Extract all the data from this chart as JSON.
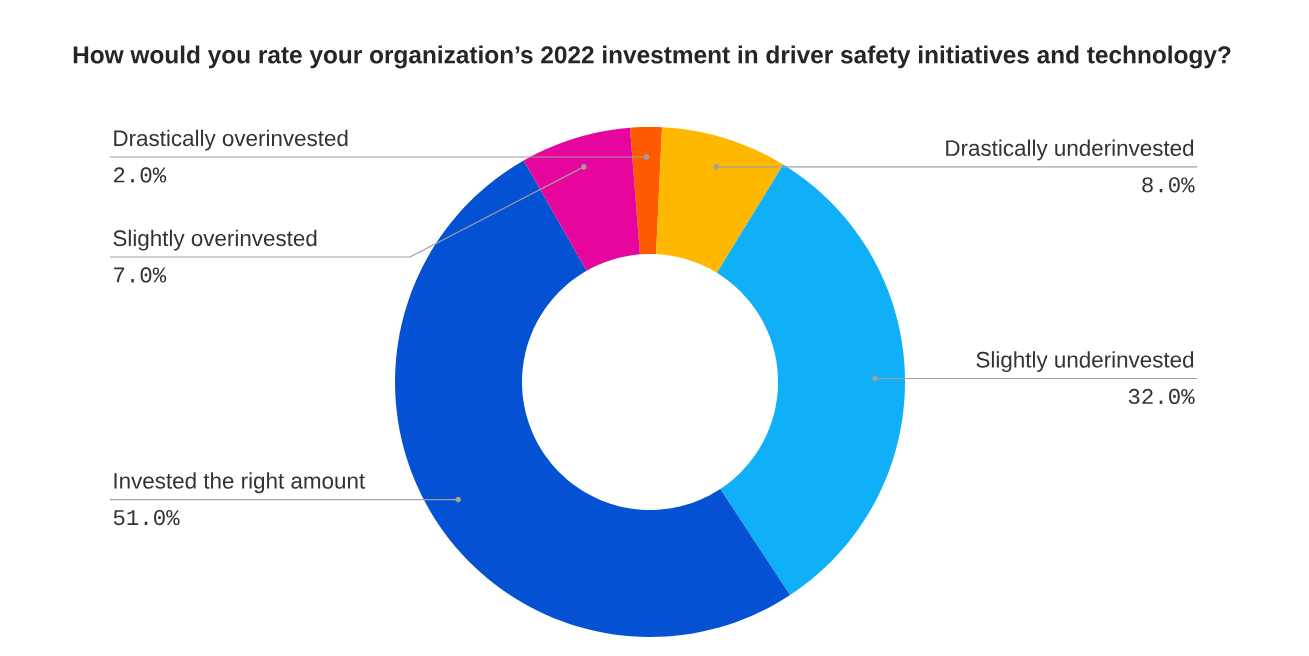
{
  "chart_data": {
    "type": "donut",
    "title": "How would you rate your organization’s 2022 investment in driver safety initiatives and technology?",
    "categories": [
      "Drastically overinvested",
      "Drastically underinvested",
      "Slightly underinvested",
      "Invested the right amount",
      "Slightly overinvested"
    ],
    "values": [
      2,
      8,
      32,
      51,
      7
    ],
    "value_labels": [
      "2.0%",
      "8.0%",
      "32.0%",
      "51.0%",
      "7.0%"
    ],
    "colors": [
      "#ff5a00",
      "#ffb800",
      "#0fb0f7",
      "#0451d4",
      "#e6069e"
    ]
  }
}
